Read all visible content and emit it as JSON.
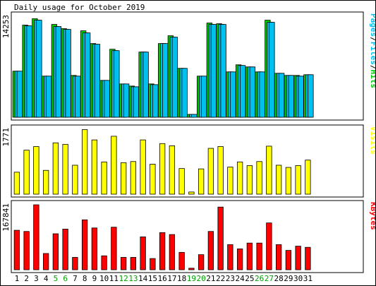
{
  "chart_data": {
    "type": "bar",
    "title": "Daily usage for October 2019",
    "categories": [
      "1",
      "2",
      "3",
      "4",
      "5",
      "6",
      "7",
      "8",
      "9",
      "10",
      "11",
      "12",
      "13",
      "14",
      "15",
      "16",
      "17",
      "18",
      "19",
      "20",
      "21",
      "22",
      "23",
      "24",
      "25",
      "26",
      "27",
      "28",
      "29",
      "30",
      "31"
    ],
    "weekend_days": [
      "5",
      "6",
      "12",
      "13",
      "19",
      "20",
      "26",
      "27"
    ],
    "panels": [
      {
        "name": "hits",
        "ymax_label": "14253",
        "ymax": 14253,
        "legend": [
          {
            "text": "Pages",
            "color": "#00c0f0"
          },
          {
            "text": "/",
            "color": "#000000"
          },
          {
            "text": "Files",
            "color": "#00c0f0"
          },
          {
            "text": "/",
            "color": "#000000"
          },
          {
            "text": "Hits",
            "color": "#00cc00"
          }
        ],
        "series": [
          {
            "name": "Hits",
            "color": "#00cc00",
            "values": [
              6500,
              13000,
              13900,
              5800,
              13100,
              12500,
              5900,
              12200,
              10400,
              5200,
              9600,
              4700,
              4400,
              9200,
              4700,
              10400,
              11500,
              6900,
              400,
              5800,
              13300,
              13200,
              6400,
              7400,
              7100,
              6400,
              13700,
              6200,
              5900,
              5900,
              6000
            ]
          },
          {
            "name": "Files",
            "color": "#00c0f0",
            "values": [
              6500,
              12900,
              13700,
              5800,
              12800,
              12400,
              5800,
              11900,
              10300,
              5200,
              9400,
              4700,
              4300,
              9200,
              4600,
              10400,
              11300,
              6900,
              400,
              5800,
              13100,
              13100,
              6400,
              7300,
              7100,
              6400,
              13400,
              6200,
              5900,
              5800,
              6000
            ]
          },
          {
            "name": "Pages",
            "color": "#00c0f0",
            "values": [
              6500,
              12900,
              13700,
              5800,
              12800,
              12400,
              5800,
              11900,
              10300,
              5200,
              9400,
              4700,
              4300,
              9200,
              4600,
              10400,
              11300,
              6900,
              400,
              5800,
              13100,
              13100,
              6400,
              7300,
              7100,
              6400,
              13400,
              6200,
              5900,
              5800,
              6000
            ]
          }
        ]
      },
      {
        "name": "visits",
        "ymax_label": "1771",
        "ymax": 1771,
        "legend": [
          {
            "text": "Visits",
            "color": "#ffff00"
          }
        ],
        "series": [
          {
            "name": "Visits",
            "color": "#ffff00",
            "values": [
              600,
              1200,
              1300,
              650,
              1400,
              1360,
              790,
              1760,
              1480,
              880,
              1580,
              860,
              890,
              1480,
              820,
              1380,
              1320,
              700,
              60,
              690,
              1250,
              1300,
              740,
              880,
              780,
              890,
              1310,
              790,
              730,
              780,
              930
            ]
          }
        ]
      },
      {
        "name": "kbytes",
        "ymax_label": "167841",
        "ymax": 167841,
        "legend": [
          {
            "text": "KBytes",
            "color": "#ff0000"
          }
        ],
        "series": [
          {
            "name": "KBytes",
            "color": "#ff0000",
            "values": [
              102000,
              99000,
              167800,
              42000,
              93000,
              105000,
              32000,
              129000,
              108000,
              36000,
              110000,
              32000,
              32000,
              85000,
              29000,
              96000,
              91000,
              45000,
              4000,
              39000,
              99000,
              162000,
              65000,
              54000,
              69000,
              69000,
              121000,
              65000,
              50000,
              61000,
              58000
            ]
          }
        ]
      }
    ]
  }
}
